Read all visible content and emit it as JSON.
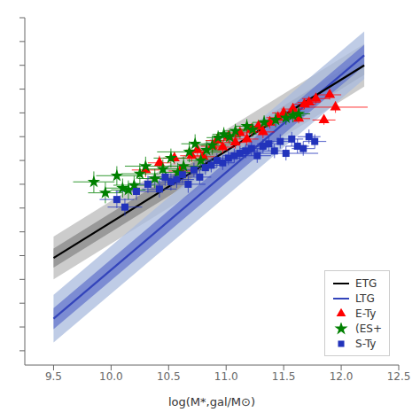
{
  "chart_data": {
    "type": "scatter",
    "x_label": "log(M*,gal/M⊙)",
    "xlim": [
      9.25,
      12.5
    ],
    "xticks": [
      9.5,
      {
        "value": 10.0,
        "label": "10.0"
      },
      10.5,
      {
        "value": 11.0,
        "label": "11.0"
      },
      11.5,
      {
        "value": 12.0,
        "label": "12.0"
      },
      12.5
    ],
    "ylim": [
      3.7,
      11.0
    ],
    "yticks": [
      4.0,
      4.5,
      5.0,
      5.5,
      6.0,
      6.5,
      7.0,
      7.5,
      8.0,
      8.5,
      9.0,
      9.5,
      10.0,
      10.5,
      11.0
    ],
    "tick_labels": "x",
    "grid": false,
    "legend": "lower right",
    "bands": [
      {
        "series": "ETG",
        "color": "#cccccc",
        "x": [
          9.5,
          12.2
        ],
        "low": [
          5.5,
          9.55
        ],
        "high": [
          6.4,
          10.45
        ]
      },
      {
        "series": "ETG",
        "color": "#999999",
        "x": [
          9.5,
          12.2
        ],
        "low": [
          5.75,
          9.8
        ],
        "high": [
          6.15,
          10.2
        ]
      },
      {
        "series": "LTG",
        "color": "#aabbdd",
        "x": [
          9.5,
          12.2
        ],
        "low": [
          4.175,
          9.71
        ],
        "high": [
          5.175,
          10.71
        ]
      },
      {
        "series": "LTG",
        "color": "#6677cc",
        "x": [
          9.5,
          12.2
        ],
        "low": [
          4.455,
          9.99
        ],
        "high": [
          4.895,
          10.43
        ]
      }
    ],
    "series": [
      {
        "name": "ETG",
        "type": "line",
        "color": "#000000",
        "x": [
          9.5,
          12.2
        ],
        "values": [
          5.95,
          10.0
        ]
      },
      {
        "name": "LTG",
        "type": "line",
        "color": "#3344bb",
        "x": [
          9.5,
          12.2
        ],
        "values": [
          4.675,
          10.21
        ]
      },
      {
        "name": "E-Ty",
        "type": "scatter",
        "marker": "triangle",
        "color": "red",
        "x": [
          10.3,
          10.42,
          10.55,
          10.6,
          10.7,
          10.75,
          10.8,
          10.88,
          10.92,
          10.97,
          11.02,
          11.08,
          11.12,
          11.18,
          11.22,
          11.28,
          11.32,
          11.38,
          11.45,
          11.5,
          11.58,
          11.63,
          11.68,
          11.72,
          11.78,
          11.85,
          11.9,
          11.95
        ],
        "values": [
          7.8,
          7.95,
          8.05,
          7.78,
          8.1,
          8.22,
          8.08,
          8.3,
          8.42,
          8.28,
          8.5,
          8.38,
          8.58,
          8.45,
          8.65,
          8.72,
          8.6,
          8.8,
          8.9,
          9.0,
          9.08,
          8.88,
          9.18,
          9.22,
          9.3,
          8.85,
          9.38,
          9.12
        ],
        "x_err": [
          0.12,
          0.1,
          0.1,
          0.1,
          0.1,
          0.1,
          0.1,
          0.1,
          0.1,
          0.1,
          0.1,
          0.1,
          0.1,
          0.1,
          0.1,
          0.1,
          0.1,
          0.1,
          0.1,
          0.1,
          0.1,
          0.1,
          0.1,
          0.1,
          0.12,
          0.1,
          0.1,
          0.28
        ],
        "y_err": [
          0.15,
          0.15,
          0.13,
          0.13,
          0.13,
          0.13,
          0.13,
          0.13,
          0.13,
          0.13,
          0.13,
          0.13,
          0.13,
          0.13,
          0.13,
          0.13,
          0.13,
          0.13,
          0.13,
          0.13,
          0.13,
          0.1,
          0.1,
          0.1,
          0.1,
          0.1,
          0.1,
          0.12
        ]
      },
      {
        "name": "(ES+",
        "type": "scatter",
        "marker": "star",
        "color": "green",
        "x": [
          9.85,
          9.95,
          10.05,
          10.1,
          10.15,
          10.2,
          10.25,
          10.3,
          10.38,
          10.45,
          10.52,
          10.58,
          10.63,
          10.68,
          10.73,
          10.78,
          10.83,
          10.88,
          10.93,
          10.98,
          11.03,
          11.08,
          11.18,
          11.23,
          11.33,
          11.43,
          11.52,
          11.58,
          11.63
        ],
        "values": [
          7.55,
          7.32,
          7.68,
          7.42,
          7.38,
          7.48,
          7.72,
          7.88,
          7.62,
          7.82,
          8.05,
          7.75,
          7.88,
          8.18,
          8.35,
          8.0,
          8.22,
          8.32,
          8.48,
          8.55,
          8.5,
          8.62,
          8.72,
          8.65,
          8.8,
          8.85,
          8.9,
          8.95,
          8.98
        ],
        "x_err": [
          0.18,
          0.15,
          0.18,
          0.15,
          0.15,
          0.18,
          0.16,
          0.18,
          0.15,
          0.15,
          0.15,
          0.15,
          0.15,
          0.28,
          0.12,
          0.12,
          0.12,
          0.12,
          0.1,
          0.1,
          0.1,
          0.1,
          0.1,
          0.1,
          0.1,
          0.1,
          0.1,
          0.1,
          0.1
        ],
        "y_err": [
          0.22,
          0.22,
          0.2,
          0.2,
          0.2,
          0.2,
          0.22,
          0.2,
          0.2,
          0.2,
          0.2,
          0.2,
          0.2,
          0.22,
          0.2,
          0.2,
          0.2,
          0.2,
          0.15,
          0.15,
          0.15,
          0.15,
          0.15,
          0.15,
          0.15,
          0.15,
          0.15,
          0.15,
          0.15
        ]
      },
      {
        "name": "S-Ty",
        "type": "scatter",
        "marker": "square",
        "color": "#2233bb",
        "x": [
          10.05,
          10.12,
          10.22,
          10.32,
          10.42,
          10.47,
          10.52,
          10.57,
          10.62,
          10.67,
          10.72,
          10.77,
          10.82,
          10.87,
          10.92,
          10.97,
          11.02,
          11.07,
          11.12,
          11.17,
          11.22,
          11.27,
          11.32,
          11.37,
          11.42,
          11.47,
          11.52,
          11.57,
          11.62,
          11.67,
          11.72,
          11.77
        ],
        "values": [
          7.18,
          7.02,
          7.35,
          7.5,
          7.4,
          7.65,
          7.55,
          7.6,
          7.7,
          7.5,
          7.8,
          7.65,
          7.85,
          7.9,
          8.0,
          7.95,
          8.05,
          8.1,
          8.15,
          8.2,
          8.25,
          8.1,
          8.3,
          8.35,
          8.2,
          8.4,
          8.15,
          8.45,
          8.3,
          8.25,
          8.5,
          8.4
        ],
        "x_err": [
          0.15,
          0.15,
          0.18,
          0.15,
          0.15,
          0.15,
          0.15,
          0.15,
          0.15,
          0.15,
          0.1,
          0.1,
          0.1,
          0.1,
          0.1,
          0.1,
          0.1,
          0.1,
          0.1,
          0.1,
          0.1,
          0.12,
          0.1,
          0.1,
          0.1,
          0.1,
          0.28,
          0.1,
          0.1,
          0.1,
          0.1,
          0.1
        ],
        "y_err": [
          0.18,
          0.18,
          0.18,
          0.18,
          0.18,
          0.18,
          0.18,
          0.18,
          0.18,
          0.18,
          0.15,
          0.15,
          0.15,
          0.15,
          0.15,
          0.15,
          0.15,
          0.15,
          0.15,
          0.15,
          0.15,
          0.15,
          0.15,
          0.15,
          0.15,
          0.15,
          0.15,
          0.15,
          0.15,
          0.15,
          0.15,
          0.15
        ]
      }
    ]
  }
}
